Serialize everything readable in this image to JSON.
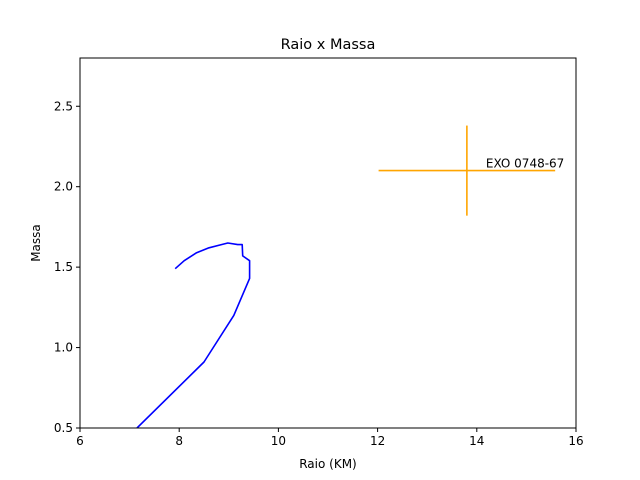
{
  "chart_data": {
    "type": "line",
    "title": "Raio x Massa",
    "xlabel": "Raio (KM)",
    "ylabel": "Massa",
    "xlim": [
      6,
      16
    ],
    "ylim": [
      0.5,
      2.8
    ],
    "xticks": [
      6,
      8,
      10,
      12,
      14,
      16
    ],
    "yticks": [
      0.5,
      1.0,
      1.5,
      2.0,
      2.5
    ],
    "xtick_labels": [
      "6",
      "8",
      "10",
      "12",
      "14",
      "16"
    ],
    "ytick_labels": [
      "0.5",
      "1.0",
      "1.5",
      "2.0",
      "2.5"
    ],
    "grid": false,
    "series": [
      {
        "color": "#0000ff",
        "points": [
          [
            7.15,
            0.5
          ],
          [
            8.5,
            0.91
          ],
          [
            9.1,
            1.2
          ],
          [
            9.42,
            1.43
          ],
          [
            9.42,
            1.54
          ],
          [
            9.28,
            1.57
          ],
          [
            9.27,
            1.64
          ],
          [
            9.18,
            1.64
          ],
          [
            8.98,
            1.65
          ],
          [
            8.85,
            1.64
          ],
          [
            8.6,
            1.62
          ],
          [
            8.35,
            1.59
          ],
          [
            8.1,
            1.54
          ],
          [
            7.92,
            1.49
          ]
        ]
      }
    ],
    "errorbar": {
      "label": "EXO 0748-67",
      "color": "#ffa500",
      "x": 13.8,
      "y": 2.1,
      "xerr": 1.78,
      "yerr": 0.28
    }
  }
}
